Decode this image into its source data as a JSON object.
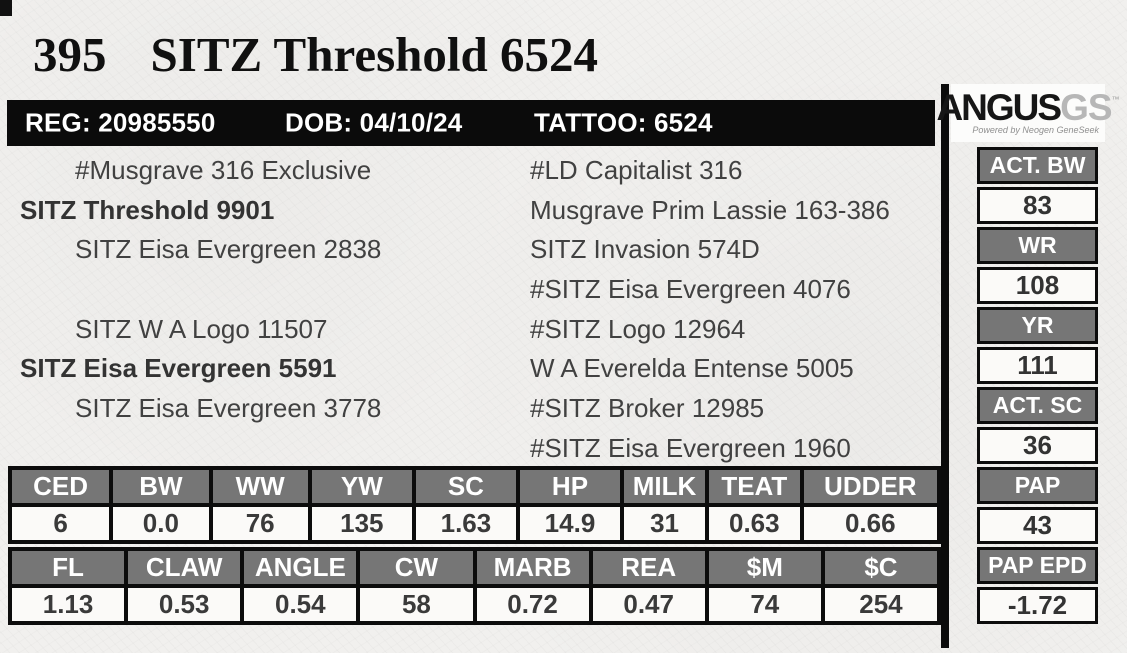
{
  "header": {
    "lot_number": "395",
    "animal_name": "SITZ Threshold 6524"
  },
  "info_bar": {
    "reg": "REG: 20985550",
    "dob": "DOB: 04/10/24",
    "tattoo": "TATTOO: 6524"
  },
  "logo": {
    "brand": "ANGUS",
    "suffix": "GS",
    "trademark": "™",
    "tagline": "Powered by Neogen GeneSeek"
  },
  "pedigree": {
    "left": [
      "#Musgrave 316 Exclusive",
      "SITZ Threshold 9901",
      "SITZ Eisa Evergreen 2838",
      "SITZ W A Logo 11507",
      "SITZ Eisa Evergreen 5591",
      "SITZ Eisa Evergreen 3778"
    ],
    "right": [
      "#LD Capitalist 316",
      "Musgrave Prim Lassie 163-386",
      "SITZ Invasion 574D",
      "#SITZ Eisa Evergreen 4076",
      "#SITZ Logo 12964",
      "W A Everelda Entense 5005",
      "#SITZ Broker 12985",
      "#SITZ Eisa Evergreen 1960"
    ]
  },
  "stats": [
    {
      "label": "ACT. BW",
      "value": "83"
    },
    {
      "label": "WR",
      "value": "108"
    },
    {
      "label": "YR",
      "value": "111"
    },
    {
      "label": "ACT. SC",
      "value": "36"
    },
    {
      "label": "PAP",
      "value": "43"
    },
    {
      "label": "PAP EPD",
      "value": "-1.72"
    }
  ],
  "epd": {
    "row1": {
      "headers": [
        "CED",
        "BW",
        "WW",
        "YW",
        "SC",
        "HP",
        "MILK",
        "TEAT",
        "UDDER"
      ],
      "values": [
        "6",
        "0.0",
        "76",
        "135",
        "1.63",
        "14.9",
        "31",
        "0.63",
        "0.66"
      ]
    },
    "row2": {
      "headers": [
        "FL",
        "CLAW",
        "ANGLE",
        "CW",
        "MARB",
        "REA",
        "$M",
        "$C"
      ],
      "values": [
        "1.13",
        "0.53",
        "0.54",
        "58",
        "0.72",
        "0.47",
        "74",
        "254"
      ]
    }
  },
  "colors": {
    "header_gray": "#767676",
    "bar_black": "#0b0b0b",
    "page_bg": "#f1f0ee",
    "value_text": "#3a3a3a"
  }
}
